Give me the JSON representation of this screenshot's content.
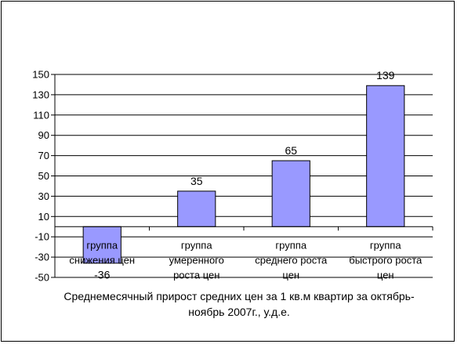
{
  "chart_data": {
    "type": "bar",
    "categories": [
      [
        "группа",
        "снижения цен"
      ],
      [
        "группа",
        "умеренного",
        "роста цен"
      ],
      [
        "группа",
        "среднего роста",
        "цен"
      ],
      [
        "группа",
        "быстрого роста",
        "цен"
      ]
    ],
    "values": [
      -36,
      35,
      65,
      139
    ],
    "data_labels": [
      "-36",
      "35",
      "65",
      "139"
    ],
    "yticks": [
      -50,
      -30,
      -10,
      10,
      30,
      50,
      70,
      90,
      110,
      130,
      150
    ],
    "ylim": [
      -50,
      150
    ],
    "xlabel": "Среднемесячный прирост средних цен за 1 кв.м квартир за октябрь-ноябрь 2007г., у.д.е.",
    "grid": true,
    "bar_color": "#9999ff",
    "legend": "none"
  }
}
